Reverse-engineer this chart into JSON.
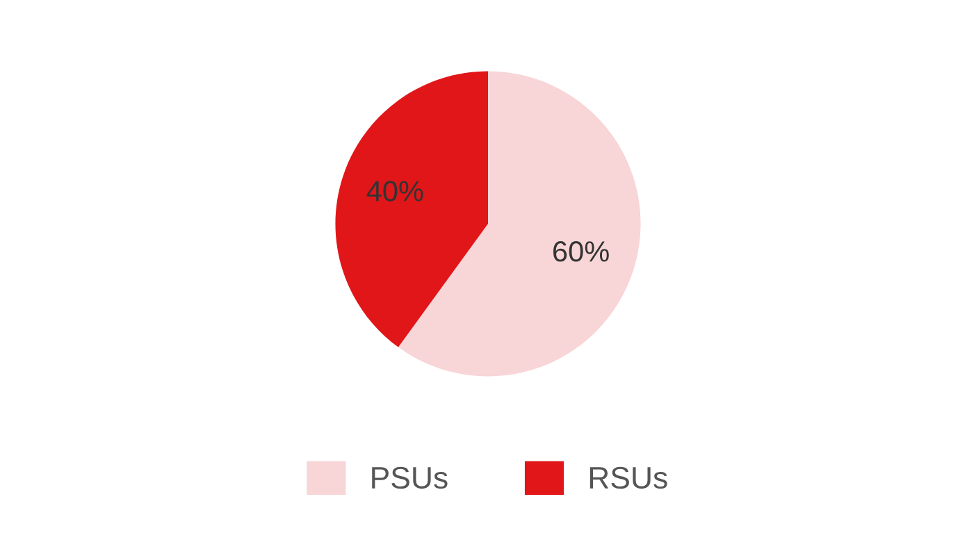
{
  "chart_data": {
    "type": "pie",
    "categories": [
      "PSUs",
      "RSUs"
    ],
    "values": [
      60,
      40
    ],
    "colors": [
      "#f8d5d7",
      "#e11619"
    ],
    "value_labels": [
      "60%",
      "40%"
    ],
    "legend": "bottom"
  }
}
